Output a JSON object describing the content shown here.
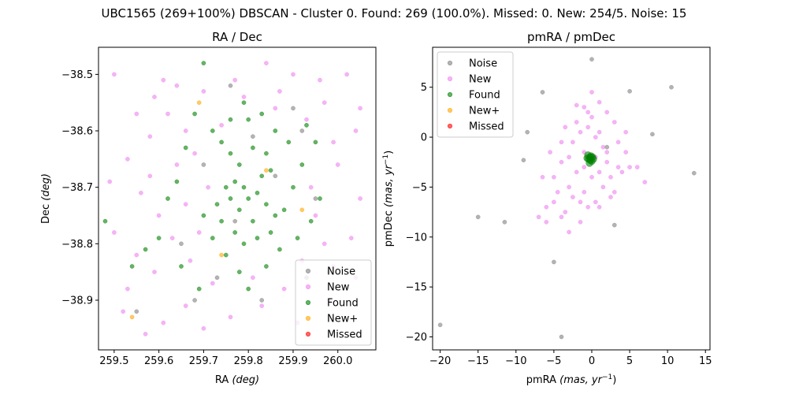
{
  "suptitle": "UBC1565 (269+100%) DBSCAN - Cluster 0. Found: 269 (100.0%). Missed: 0. New: 254/5. Noise: 15",
  "colors": {
    "Noise": "#808080",
    "New": "#ee82ee",
    "Found": "#008000",
    "New+": "#ffa500",
    "Missed": "#ff0000"
  },
  "chart_data": [
    {
      "type": "scatter",
      "title": "RA / Dec",
      "xlabel": "RA (deg)",
      "ylabel": "Dec (deg)",
      "xlim": [
        259.465,
        260.085
      ],
      "ylim": [
        -38.988,
        -38.452
      ],
      "xticks": [
        259.5,
        259.6,
        259.7,
        259.8,
        259.9,
        260.0
      ],
      "xtick_labels": [
        "259.5",
        "259.6",
        "259.7",
        "259.8",
        "259.9",
        "260.0"
      ],
      "yticks": [
        -38.5,
        -38.6,
        -38.7,
        -38.8,
        -38.9
      ],
      "ytick_labels": [
        "−38.5",
        "−38.6",
        "−38.7",
        "−38.8",
        "−38.9"
      ],
      "legend": {
        "position": "lower-right",
        "entries": [
          "Noise",
          "New",
          "Found",
          "New+",
          "Missed"
        ]
      },
      "series": [
        {
          "name": "New",
          "points": [
            [
              259.5,
              -38.5
            ],
            [
              259.55,
              -38.57
            ],
            [
              259.61,
              -38.51
            ],
            [
              259.64,
              -38.52
            ],
            [
              259.7,
              -38.53
            ],
            [
              259.77,
              -38.51
            ],
            [
              259.84,
              -38.48
            ],
            [
              259.9,
              -38.5
            ],
            [
              259.96,
              -38.51
            ],
            [
              260.02,
              -38.5
            ],
            [
              260.05,
              -38.56
            ],
            [
              259.53,
              -38.65
            ],
            [
              259.58,
              -38.61
            ],
            [
              259.62,
              -38.57
            ],
            [
              259.66,
              -38.6
            ],
            [
              259.68,
              -38.64
            ],
            [
              259.74,
              -38.59
            ],
            [
              259.86,
              -38.56
            ],
            [
              259.93,
              -38.58
            ],
            [
              259.99,
              -38.62
            ],
            [
              260.04,
              -38.6
            ],
            [
              259.49,
              -38.69
            ],
            [
              259.56,
              -38.71
            ],
            [
              259.6,
              -38.75
            ],
            [
              259.66,
              -38.73
            ],
            [
              259.71,
              -38.7
            ],
            [
              259.94,
              -38.7
            ],
            [
              260.0,
              -38.66
            ],
            [
              260.05,
              -38.72
            ],
            [
              259.5,
              -38.78
            ],
            [
              259.55,
              -38.82
            ],
            [
              259.59,
              -38.85
            ],
            [
              259.63,
              -38.79
            ],
            [
              259.67,
              -38.83
            ],
            [
              259.72,
              -38.87
            ],
            [
              259.81,
              -38.86
            ],
            [
              259.88,
              -38.88
            ],
            [
              259.92,
              -38.83
            ],
            [
              259.97,
              -38.8
            ],
            [
              260.03,
              -38.79
            ],
            [
              259.52,
              -38.92
            ],
            [
              259.57,
              -38.96
            ],
            [
              259.61,
              -38.94
            ],
            [
              259.66,
              -38.91
            ],
            [
              259.7,
              -38.95
            ],
            [
              259.76,
              -38.93
            ],
            [
              259.83,
              -38.91
            ],
            [
              259.91,
              -38.94
            ],
            [
              259.98,
              -38.9
            ],
            [
              260.04,
              -38.86
            ],
            [
              259.58,
              -38.68
            ],
            [
              259.64,
              -38.66
            ],
            [
              259.95,
              -38.75
            ],
            [
              259.99,
              -38.84
            ],
            [
              259.53,
              -38.88
            ],
            [
              259.69,
              -38.78
            ],
            [
              259.87,
              -38.53
            ],
            [
              259.79,
              -38.54
            ],
            [
              259.59,
              -38.54
            ],
            [
              259.97,
              -38.55
            ]
          ]
        },
        {
          "name": "Found",
          "points": [
            [
              259.7,
              -38.48
            ],
            [
              259.72,
              -38.6
            ],
            [
              259.74,
              -38.62
            ],
            [
              259.76,
              -38.64
            ],
            [
              259.78,
              -38.66
            ],
            [
              259.77,
              -38.69
            ],
            [
              259.79,
              -38.7
            ],
            [
              259.8,
              -38.72
            ],
            [
              259.82,
              -38.71
            ],
            [
              259.83,
              -38.68
            ],
            [
              259.85,
              -38.67
            ],
            [
              259.84,
              -38.73
            ],
            [
              259.86,
              -38.75
            ],
            [
              259.81,
              -38.76
            ],
            [
              259.78,
              -38.74
            ],
            [
              259.76,
              -38.72
            ],
            [
              259.75,
              -38.7
            ],
            [
              259.73,
              -38.73
            ],
            [
              259.74,
              -38.76
            ],
            [
              259.77,
              -38.78
            ],
            [
              259.79,
              -38.8
            ],
            [
              259.82,
              -38.79
            ],
            [
              259.85,
              -38.78
            ],
            [
              259.88,
              -38.74
            ],
            [
              259.9,
              -38.7
            ],
            [
              259.92,
              -38.66
            ],
            [
              259.89,
              -38.62
            ],
            [
              259.86,
              -38.6
            ],
            [
              259.83,
              -38.57
            ],
            [
              259.8,
              -38.58
            ],
            [
              259.68,
              -38.57
            ],
            [
              259.66,
              -38.63
            ],
            [
              259.64,
              -38.69
            ],
            [
              259.62,
              -38.72
            ],
            [
              259.7,
              -38.75
            ],
            [
              259.72,
              -38.79
            ],
            [
              259.75,
              -38.82
            ],
            [
              259.78,
              -38.85
            ],
            [
              259.8,
              -38.88
            ],
            [
              259.84,
              -38.84
            ],
            [
              259.87,
              -38.81
            ],
            [
              259.91,
              -38.79
            ],
            [
              259.94,
              -38.76
            ],
            [
              259.96,
              -38.72
            ],
            [
              259.6,
              -38.79
            ],
            [
              259.57,
              -38.81
            ],
            [
              259.54,
              -38.84
            ],
            [
              259.48,
              -38.76
            ],
            [
              259.65,
              -38.84
            ],
            [
              259.69,
              -38.88
            ],
            [
              259.81,
              -38.63
            ],
            [
              259.84,
              -38.64
            ],
            [
              259.93,
              -38.59
            ],
            [
              259.95,
              -38.62
            ],
            [
              259.76,
              -38.58
            ],
            [
              259.79,
              -38.55
            ]
          ]
        },
        {
          "name": "Noise",
          "points": [
            [
              259.76,
              -38.52
            ],
            [
              259.81,
              -38.61
            ],
            [
              259.9,
              -38.56
            ],
            [
              259.86,
              -38.68
            ],
            [
              259.95,
              -38.72
            ],
            [
              259.93,
              -38.86
            ],
            [
              259.68,
              -38.9
            ],
            [
              259.73,
              -38.86
            ],
            [
              259.55,
              -38.92
            ],
            [
              259.65,
              -38.8
            ],
            [
              259.83,
              -38.9
            ],
            [
              259.77,
              -38.76
            ],
            [
              259.92,
              -38.6
            ],
            [
              259.7,
              -38.66
            ],
            [
              259.98,
              -38.85
            ]
          ]
        },
        {
          "name": "New+",
          "points": [
            [
              259.69,
              -38.55
            ],
            [
              259.84,
              -38.67
            ],
            [
              259.92,
              -38.74
            ],
            [
              259.74,
              -38.82
            ],
            [
              259.54,
              -38.93
            ]
          ]
        },
        {
          "name": "Missed",
          "points": []
        }
      ]
    },
    {
      "type": "scatter",
      "title": "pmRA / pmDec",
      "xlabel": "pmRA (mas, yr−1)",
      "ylabel": "pmDec (mas, yr−1)",
      "xlim": [
        -21.0,
        15.6
      ],
      "ylim": [
        -21.3,
        9.0
      ],
      "xticks": [
        -20,
        -15,
        -10,
        -5,
        0,
        5,
        10,
        15
      ],
      "xtick_labels": [
        "−20",
        "−15",
        "−10",
        "−5",
        "0",
        "5",
        "10",
        "15"
      ],
      "yticks": [
        5,
        0,
        -5,
        -10,
        -15,
        -20
      ],
      "ytick_labels": [
        "5",
        "0",
        "−5",
        "−10",
        "−15",
        "−20"
      ],
      "legend": {
        "position": "upper-left",
        "entries": [
          "Noise",
          "New",
          "Found",
          "New+",
          "Missed"
        ]
      },
      "series": [
        {
          "name": "New",
          "points": [
            [
              0.0,
              4.5
            ],
            [
              1.0,
              3.5
            ],
            [
              -1.0,
              3.0
            ],
            [
              -3.5,
              1.0
            ],
            [
              3.0,
              1.5
            ],
            [
              4.5,
              0.5
            ],
            [
              -4.0,
              -0.5
            ],
            [
              4.5,
              -1.5
            ],
            [
              -5.5,
              -1.5
            ],
            [
              6.0,
              -3.0
            ],
            [
              -6.5,
              -4.0
            ],
            [
              7.0,
              -4.5
            ],
            [
              -5.0,
              -6.5
            ],
            [
              -6.0,
              -8.5
            ],
            [
              -4.0,
              -8.0
            ],
            [
              -3.5,
              -7.5
            ],
            [
              -2.5,
              -6.0
            ],
            [
              -1.0,
              -5.5
            ],
            [
              0.5,
              -6.5
            ],
            [
              1.5,
              -5.0
            ],
            [
              2.5,
              -4.0
            ],
            [
              3.5,
              -3.0
            ],
            [
              2.0,
              -2.5
            ],
            [
              1.5,
              -1.0
            ],
            [
              0.5,
              0.0
            ],
            [
              -0.5,
              1.0
            ],
            [
              -1.5,
              0.5
            ],
            [
              -2.5,
              -0.5
            ],
            [
              -3.0,
              -2.0
            ],
            [
              -2.0,
              -3.5
            ],
            [
              -1.0,
              -3.0
            ],
            [
              0.0,
              -4.0
            ],
            [
              1.0,
              -3.5
            ],
            [
              2.0,
              -1.5
            ],
            [
              1.0,
              0.5
            ],
            [
              -0.5,
              2.5
            ],
            [
              -2.0,
              1.5
            ],
            [
              -4.0,
              -2.5
            ],
            [
              -5.0,
              -4.0
            ],
            [
              -3.0,
              -5.0
            ],
            [
              -1.5,
              -6.5
            ],
            [
              -0.5,
              -7.0
            ],
            [
              1.0,
              -7.0
            ],
            [
              2.5,
              -6.0
            ],
            [
              3.0,
              -5.5
            ],
            [
              4.0,
              -3.5
            ],
            [
              3.5,
              -0.5
            ],
            [
              0.0,
              2.0
            ],
            [
              -1.0,
              -1.5
            ],
            [
              0.5,
              -2.0
            ],
            [
              -7.0,
              -8.0
            ],
            [
              5.0,
              -3.0
            ],
            [
              2.0,
              2.5
            ],
            [
              -2.0,
              3.2
            ],
            [
              -4.5,
              -5.5
            ],
            [
              -3.0,
              -9.5
            ],
            [
              -1.5,
              -8.5
            ],
            [
              -6.0,
              -7.0
            ]
          ]
        },
        {
          "name": "Found",
          "points": [
            [
              -0.2,
              -2.0
            ],
            [
              -0.4,
              -2.2
            ],
            [
              0.0,
              -2.4
            ],
            [
              -0.6,
              -2.1
            ],
            [
              -0.1,
              -1.9
            ],
            [
              0.2,
              -2.2
            ],
            [
              -0.3,
              -2.6
            ],
            [
              -0.5,
              -1.8
            ],
            [
              0.1,
              -2.0
            ],
            [
              -0.2,
              -2.3
            ]
          ]
        },
        {
          "name": "Noise",
          "points": [
            [
              0.0,
              7.8
            ],
            [
              -6.5,
              4.5
            ],
            [
              5.0,
              4.6
            ],
            [
              10.5,
              5.0
            ],
            [
              8.0,
              0.3
            ],
            [
              -8.5,
              0.5
            ],
            [
              13.5,
              -3.6
            ],
            [
              -9.0,
              -2.3
            ],
            [
              -15.0,
              -8.0
            ],
            [
              -11.5,
              -8.5
            ],
            [
              3.0,
              -8.8
            ],
            [
              -5.0,
              -12.5
            ],
            [
              -20.0,
              -18.8
            ],
            [
              -4.0,
              -20.0
            ],
            [
              2.0,
              -1.0
            ]
          ]
        },
        {
          "name": "New+",
          "points": []
        },
        {
          "name": "Missed",
          "points": []
        }
      ]
    }
  ]
}
